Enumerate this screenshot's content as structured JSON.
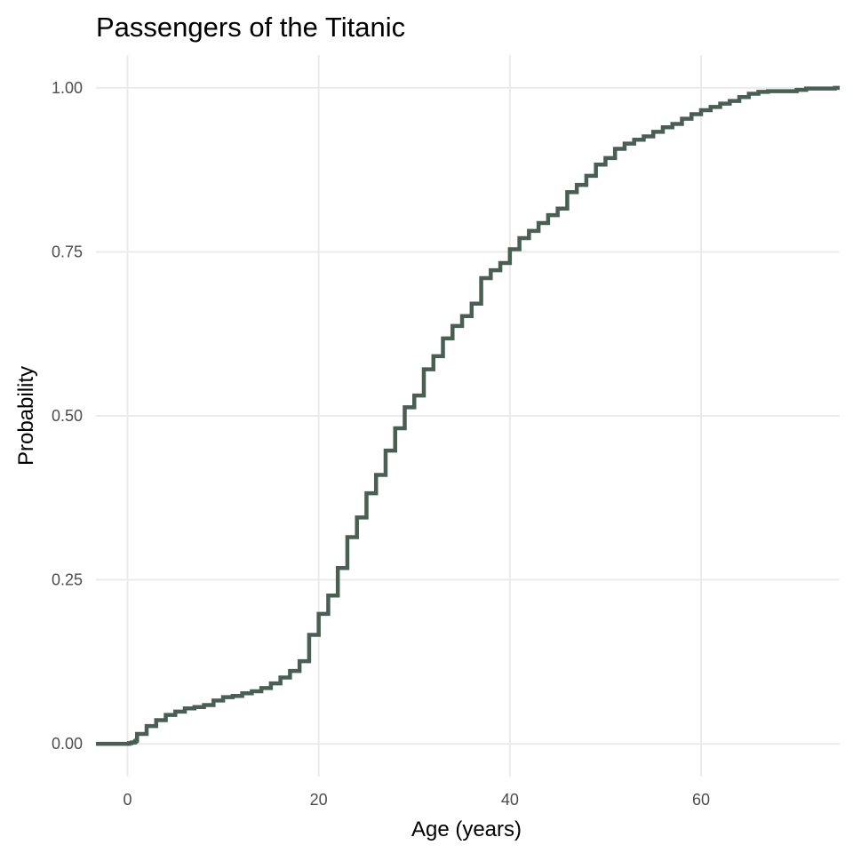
{
  "chart_data": {
    "type": "line",
    "subtype": "ecdf-step",
    "title": "Passengers of the Titanic",
    "xlabel": "Age (years)",
    "ylabel": "Probability",
    "xlim": [
      -3.3,
      74.5
    ],
    "ylim": [
      -0.05,
      1.05
    ],
    "x_ticks": [
      0,
      20,
      40,
      60
    ],
    "x_tick_labels": [
      "0",
      "20",
      "40",
      "60"
    ],
    "y_ticks": [
      0,
      0.25,
      0.5,
      0.75,
      1
    ],
    "y_tick_labels": [
      "0.00",
      "0.25",
      "0.50",
      "0.75",
      "1.00"
    ],
    "grid": "major",
    "line_color": "#4a5f53",
    "series": [
      {
        "x": [
          -3.3,
          0.17,
          0.42,
          0.75,
          0.83,
          0.92,
          1,
          2,
          3,
          4,
          5,
          6,
          7,
          8,
          9,
          10,
          11,
          12,
          13,
          14,
          15,
          16,
          17,
          18,
          19,
          20,
          21,
          22,
          23,
          24,
          25,
          26,
          27,
          28,
          29,
          30,
          31,
          32,
          33,
          34,
          35,
          36,
          37,
          38,
          39,
          40,
          41,
          42,
          43,
          44,
          45,
          46,
          47,
          48,
          49,
          50,
          51,
          52,
          53,
          54,
          55,
          56,
          57,
          58,
          59,
          60,
          61,
          62,
          63,
          64,
          65,
          66,
          67,
          70,
          71,
          74,
          74.5
        ],
        "y": [
          0,
          0.001,
          0.002,
          0.003,
          0.004,
          0.005,
          0.015,
          0.027,
          0.036,
          0.044,
          0.049,
          0.054,
          0.056,
          0.059,
          0.066,
          0.071,
          0.073,
          0.077,
          0.08,
          0.085,
          0.092,
          0.101,
          0.111,
          0.126,
          0.166,
          0.198,
          0.226,
          0.268,
          0.315,
          0.345,
          0.382,
          0.41,
          0.447,
          0.481,
          0.513,
          0.531,
          0.571,
          0.591,
          0.618,
          0.637,
          0.652,
          0.671,
          0.71,
          0.722,
          0.733,
          0.754,
          0.771,
          0.782,
          0.794,
          0.806,
          0.816,
          0.841,
          0.852,
          0.866,
          0.883,
          0.893,
          0.907,
          0.915,
          0.921,
          0.926,
          0.933,
          0.94,
          0.945,
          0.953,
          0.96,
          0.966,
          0.971,
          0.976,
          0.98,
          0.986,
          0.991,
          0.994,
          0.995,
          0.997,
          0.999,
          1.0,
          1.0
        ]
      }
    ]
  }
}
